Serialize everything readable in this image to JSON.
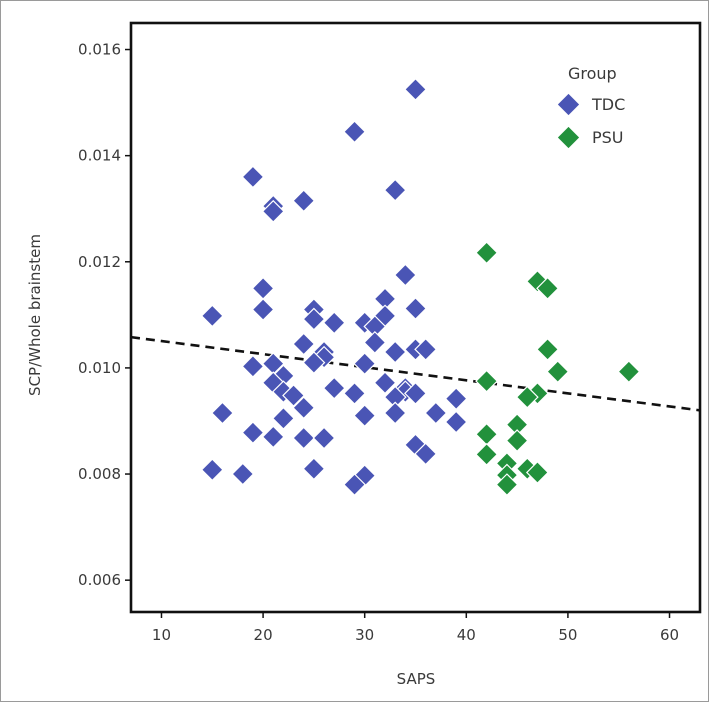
{
  "chart_data": {
    "type": "scatter",
    "title": "",
    "xlabel": "SAPS",
    "ylabel": "SCP/Whole brainstem",
    "xlim": [
      7,
      63
    ],
    "ylim": [
      0.0054,
      0.0165
    ],
    "x_ticks": [
      10,
      20,
      30,
      40,
      50,
      60
    ],
    "y_ticks": [
      0.006,
      0.008,
      0.01,
      0.012,
      0.014,
      0.016
    ],
    "x_tick_labels": [
      "10",
      "20",
      "30",
      "40",
      "50",
      "60"
    ],
    "y_tick_labels": [
      "0.006",
      "0.008",
      "0.010",
      "0.012",
      "0.014",
      "0.016"
    ],
    "grid": false,
    "legend": {
      "title": "Group",
      "placement": "top-right"
    },
    "series": [
      {
        "name": "TDC",
        "color": "#4a55b5",
        "marker": "diamond",
        "points": [
          [
            35,
            0.01525
          ],
          [
            29,
            0.01445
          ],
          [
            19,
            0.0136
          ],
          [
            33,
            0.01335
          ],
          [
            24,
            0.01315
          ],
          [
            21,
            0.01305
          ],
          [
            21,
            0.01295
          ],
          [
            34,
            0.01175
          ],
          [
            20,
            0.0115
          ],
          [
            32,
            0.0113
          ],
          [
            35,
            0.01112
          ],
          [
            20,
            0.0111
          ],
          [
            25,
            0.0111
          ],
          [
            15,
            0.01098
          ],
          [
            32,
            0.01098
          ],
          [
            25,
            0.01092
          ],
          [
            27,
            0.01085
          ],
          [
            30,
            0.01085
          ],
          [
            31,
            0.01078
          ],
          [
            31,
            0.01048
          ],
          [
            24,
            0.01045
          ],
          [
            35,
            0.01035
          ],
          [
            36,
            0.01035
          ],
          [
            33,
            0.0103
          ],
          [
            26,
            0.0103
          ],
          [
            26,
            0.0102
          ],
          [
            25,
            0.0101
          ],
          [
            30,
            0.01008
          ],
          [
            21,
            0.01008
          ],
          [
            19,
            0.01003
          ],
          [
            22,
            0.00985
          ],
          [
            21,
            0.00972
          ],
          [
            32,
            0.00972
          ],
          [
            34,
            0.00962
          ],
          [
            27,
            0.00962
          ],
          [
            34,
            0.00955
          ],
          [
            22,
            0.00955
          ],
          [
            35,
            0.00952
          ],
          [
            29,
            0.00952
          ],
          [
            23,
            0.00948
          ],
          [
            33,
            0.00945
          ],
          [
            39,
            0.00942
          ],
          [
            24,
            0.00925
          ],
          [
            16,
            0.00915
          ],
          [
            37,
            0.00915
          ],
          [
            33,
            0.00915
          ],
          [
            30,
            0.0091
          ],
          [
            22,
            0.00905
          ],
          [
            39,
            0.00898
          ],
          [
            19,
            0.00878
          ],
          [
            21,
            0.0087
          ],
          [
            24,
            0.00868
          ],
          [
            26,
            0.00868
          ],
          [
            35,
            0.00855
          ],
          [
            36,
            0.00838
          ],
          [
            25,
            0.0081
          ],
          [
            15,
            0.00808
          ],
          [
            18,
            0.008
          ],
          [
            30,
            0.00797
          ],
          [
            29,
            0.0078
          ]
        ]
      },
      {
        "name": "PSU",
        "color": "#22913c",
        "marker": "diamond",
        "points": [
          [
            42,
            0.01217
          ],
          [
            47,
            0.01163
          ],
          [
            48,
            0.0115
          ],
          [
            48,
            0.01035
          ],
          [
            56,
            0.00993
          ],
          [
            49,
            0.00993
          ],
          [
            42,
            0.00975
          ],
          [
            47,
            0.00952
          ],
          [
            46,
            0.00945
          ],
          [
            45,
            0.00893
          ],
          [
            42,
            0.00875
          ],
          [
            45,
            0.00863
          ],
          [
            42,
            0.00837
          ],
          [
            44,
            0.0082
          ],
          [
            46,
            0.0081
          ],
          [
            47,
            0.00803
          ],
          [
            44,
            0.00798
          ],
          [
            44,
            0.0078
          ]
        ]
      }
    ],
    "trend_line": {
      "style": "dashed",
      "color": "#111111",
      "x": [
        7,
        63
      ],
      "y": [
        0.01058,
        0.0092
      ]
    }
  }
}
